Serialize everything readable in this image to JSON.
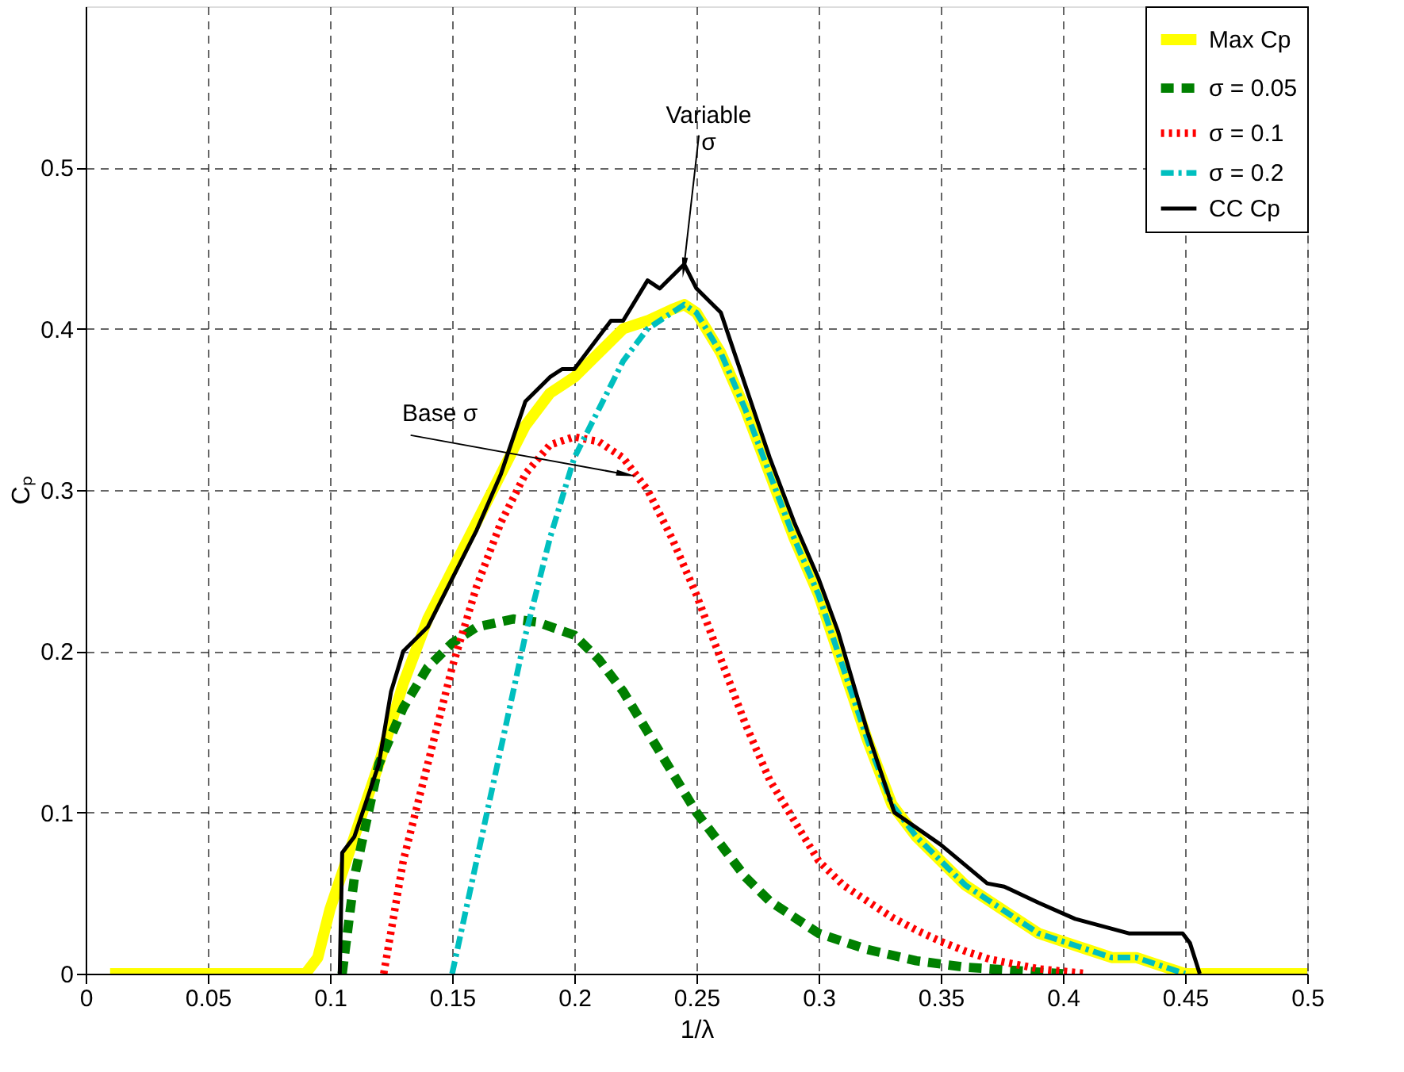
{
  "chart_data": {
    "type": "line",
    "xlabel": "1/λ",
    "ylabel": "Cₚ",
    "xlim": [
      0,
      0.5
    ],
    "ylim": [
      0,
      0.6
    ],
    "xticks": [
      0,
      0.05,
      0.1,
      0.15,
      0.2,
      0.25,
      0.3,
      0.35,
      0.4,
      0.45,
      0.5
    ],
    "yticks": [
      0,
      0.1,
      0.2,
      0.3,
      0.4,
      0.5
    ],
    "grid": true,
    "legend": "top right",
    "series": [
      {
        "name": "Max Cp",
        "color": "#ffff00",
        "line_style": "solid",
        "x": [
          0.01,
          0.05,
          0.09,
          0.095,
          0.1,
          0.11,
          0.12,
          0.13,
          0.14,
          0.15,
          0.16,
          0.17,
          0.18,
          0.19,
          0.2,
          0.21,
          0.22,
          0.23,
          0.24,
          0.245,
          0.25,
          0.26,
          0.27,
          0.28,
          0.29,
          0.3,
          0.31,
          0.32,
          0.33,
          0.34,
          0.35,
          0.36,
          0.37,
          0.38,
          0.39,
          0.4,
          0.41,
          0.42,
          0.43,
          0.44,
          0.45,
          0.5
        ],
        "values": [
          0,
          0,
          0,
          0.01,
          0.04,
          0.085,
          0.13,
          0.18,
          0.22,
          0.25,
          0.28,
          0.31,
          0.34,
          0.36,
          0.37,
          0.385,
          0.4,
          0.405,
          0.412,
          0.415,
          0.41,
          0.385,
          0.35,
          0.31,
          0.27,
          0.235,
          0.19,
          0.145,
          0.105,
          0.085,
          0.07,
          0.055,
          0.045,
          0.035,
          0.025,
          0.02,
          0.015,
          0.01,
          0.01,
          0.005,
          0,
          0
        ]
      },
      {
        "name": "σ = 0.05",
        "color": "#008000",
        "line_style": "dashed",
        "x": [
          0.105,
          0.11,
          0.12,
          0.13,
          0.14,
          0.15,
          0.16,
          0.175,
          0.185,
          0.2,
          0.21,
          0.22,
          0.23,
          0.24,
          0.25,
          0.26,
          0.27,
          0.28,
          0.29,
          0.3,
          0.32,
          0.34,
          0.36,
          0.38,
          0.4
        ],
        "values": [
          0,
          0.06,
          0.13,
          0.165,
          0.19,
          0.205,
          0.215,
          0.22,
          0.218,
          0.21,
          0.195,
          0.175,
          0.15,
          0.125,
          0.1,
          0.08,
          0.06,
          0.045,
          0.035,
          0.025,
          0.015,
          0.008,
          0.004,
          0.002,
          0
        ]
      },
      {
        "name": "σ = 0.1",
        "color": "#ff0000",
        "line_style": "dotted",
        "x": [
          0.122,
          0.13,
          0.14,
          0.15,
          0.16,
          0.17,
          0.18,
          0.19,
          0.2,
          0.21,
          0.22,
          0.23,
          0.24,
          0.25,
          0.26,
          0.27,
          0.28,
          0.29,
          0.3,
          0.31,
          0.32,
          0.33,
          0.34,
          0.35,
          0.36,
          0.37,
          0.38,
          0.39,
          0.41
        ],
        "values": [
          0,
          0.07,
          0.13,
          0.19,
          0.24,
          0.28,
          0.31,
          0.328,
          0.333,
          0.33,
          0.32,
          0.3,
          0.27,
          0.235,
          0.195,
          0.155,
          0.12,
          0.095,
          0.07,
          0.055,
          0.045,
          0.035,
          0.027,
          0.02,
          0.014,
          0.009,
          0.006,
          0.003,
          0
        ]
      },
      {
        "name": "σ = 0.2",
        "color": "#00bfbf",
        "line_style": "dashdot",
        "x": [
          0.15,
          0.16,
          0.17,
          0.18,
          0.19,
          0.2,
          0.21,
          0.22,
          0.23,
          0.24,
          0.245,
          0.25,
          0.26,
          0.27,
          0.28,
          0.29,
          0.3,
          0.31,
          0.32,
          0.33,
          0.34,
          0.35,
          0.36,
          0.37,
          0.38,
          0.39,
          0.4,
          0.41,
          0.42,
          0.43,
          0.44,
          0.45
        ],
        "values": [
          0,
          0.07,
          0.14,
          0.21,
          0.27,
          0.32,
          0.35,
          0.38,
          0.4,
          0.41,
          0.415,
          0.41,
          0.385,
          0.35,
          0.31,
          0.27,
          0.235,
          0.19,
          0.145,
          0.105,
          0.085,
          0.07,
          0.055,
          0.045,
          0.035,
          0.025,
          0.02,
          0.015,
          0.01,
          0.01,
          0.005,
          0
        ]
      },
      {
        "name": "CC Cp",
        "color": "#000000",
        "line_style": "solid",
        "x": [
          0.104,
          0.105,
          0.11,
          0.12,
          0.125,
          0.13,
          0.14,
          0.15,
          0.16,
          0.17,
          0.18,
          0.19,
          0.195,
          0.2,
          0.21,
          0.215,
          0.22,
          0.23,
          0.235,
          0.245,
          0.25,
          0.26,
          0.27,
          0.28,
          0.29,
          0.3,
          0.308,
          0.32,
          0.331,
          0.35,
          0.369,
          0.376,
          0.39,
          0.405,
          0.427,
          0.449,
          0.452,
          0.456
        ],
        "values": [
          0,
          0.075,
          0.085,
          0.13,
          0.175,
          0.2,
          0.215,
          0.245,
          0.275,
          0.31,
          0.355,
          0.37,
          0.375,
          0.375,
          0.395,
          0.405,
          0.405,
          0.43,
          0.425,
          0.44,
          0.425,
          0.41,
          0.365,
          0.32,
          0.28,
          0.245,
          0.212,
          0.15,
          0.1,
          0.08,
          0.056,
          0.054,
          0.044,
          0.034,
          0.025,
          0.025,
          0.019,
          0
        ]
      }
    ],
    "annotations": [
      {
        "text": "Variable\nσ",
        "x": 0.245,
        "y": 0.44
      },
      {
        "text": "Base σ",
        "x": 0.22,
        "y": 0.31
      }
    ]
  }
}
